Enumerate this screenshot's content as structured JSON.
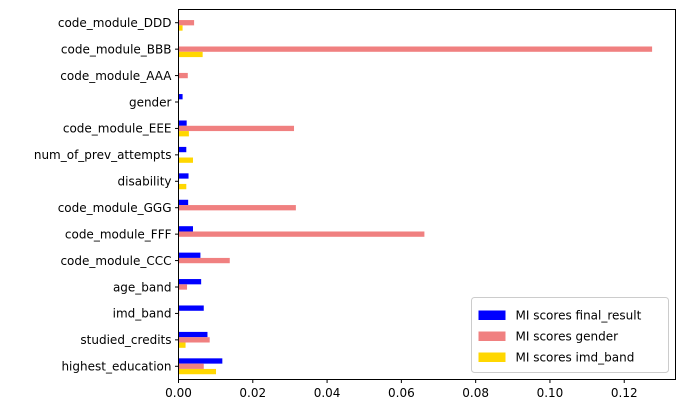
{
  "chart_data": {
    "type": "bar",
    "orientation": "horizontal",
    "categories": [
      "highest_education",
      "studied_credits",
      "imd_band",
      "age_band",
      "code_module_CCC",
      "code_module_FFF",
      "code_module_GGG",
      "disability",
      "num_of_prev_attempts",
      "code_module_EEE",
      "gender",
      "code_module_AAA",
      "code_module_BBB",
      "code_module_DDD"
    ],
    "series": [
      {
        "name": "MI scores final_result",
        "color": "#0000ff",
        "values": [
          0.0118,
          0.0078,
          0.0068,
          0.0061,
          0.0059,
          0.0039,
          0.0026,
          0.0027,
          0.0021,
          0.0022,
          0.0011,
          0.0,
          0.0,
          0.0
        ]
      },
      {
        "name": "MI scores gender",
        "color": "#f08080",
        "values": [
          0.0068,
          0.0084,
          0.0002,
          0.0023,
          0.0138,
          0.0662,
          0.0316,
          0.0,
          0.0,
          0.0311,
          0.0,
          0.0025,
          0.1275,
          0.0042
        ]
      },
      {
        "name": "MI scores imd_band",
        "color": "#ffd700",
        "values": [
          0.0101,
          0.0019,
          0.0,
          0.0,
          0.0,
          0.0,
          0.0,
          0.0021,
          0.0039,
          0.0028,
          0.0,
          0.0,
          0.0065,
          0.0011
        ]
      }
    ],
    "xlim": [
      0,
      0.1338
    ],
    "xticks": [
      "0.00",
      "0.02",
      "0.04",
      "0.06",
      "0.08",
      "0.10",
      "0.12"
    ],
    "xtick_values": [
      0,
      0.02,
      0.04,
      0.06,
      0.08,
      0.1,
      0.12
    ],
    "grid": false,
    "legend": "lower-right"
  }
}
